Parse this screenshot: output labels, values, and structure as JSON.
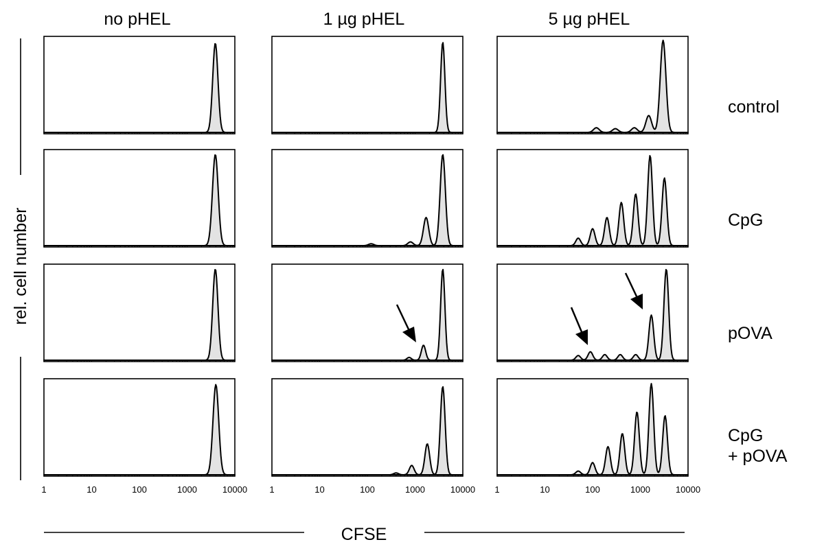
{
  "chart_data": {
    "type": "histogram-grid",
    "xlabel": "CFSE",
    "ylabel": "rel. cell number",
    "x_scale": "log",
    "xlim": [
      1,
      10000
    ],
    "x_ticks": [
      "1",
      "10",
      "100",
      "1000",
      "10000"
    ],
    "columns": [
      "no pHEL",
      "1 µg pHEL",
      "5 µg pHEL"
    ],
    "rows": [
      "control",
      "CpG",
      "pOVA",
      "CpG\n+ pOVA"
    ],
    "panels": [
      [
        {
          "peaks": [
            {
              "x": 3900,
              "h": 0.95
            }
          ],
          "width": 0.055,
          "base": 0
        },
        {
          "peaks": [
            {
              "x": 3900,
              "h": 0.97
            }
          ],
          "width": 0.06,
          "base": 0
        },
        {
          "peaks": [
            {
              "x": 3900,
              "h": 0.97
            }
          ],
          "width": 0.055,
          "base": 0
        },
        {
          "peaks": [
            {
              "x": 4000,
              "h": 0.96
            }
          ],
          "width": 0.06,
          "base": 0
        }
      ],
      [
        {
          "peaks": [
            {
              "x": 3800,
              "h": 0.96
            }
          ],
          "width": 0.045,
          "base": 0
        },
        {
          "peaks": [
            {
              "x": 3800,
              "h": 0.97
            },
            {
              "x": 1700,
              "h": 0.3
            },
            {
              "x": 800,
              "h": 0.04
            },
            {
              "x": 120,
              "h": 0.02
            }
          ],
          "width": 0.055,
          "base": 0
        },
        {
          "peaks": [
            {
              "x": 3800,
              "h": 0.97
            },
            {
              "x": 1500,
              "h": 0.16
            },
            {
              "x": 750,
              "h": 0.03
            }
          ],
          "width": 0.045,
          "base": 0
        },
        {
          "peaks": [
            {
              "x": 3800,
              "h": 0.94
            },
            {
              "x": 1800,
              "h": 0.33
            },
            {
              "x": 850,
              "h": 0.1
            },
            {
              "x": 400,
              "h": 0.02
            }
          ],
          "width": 0.05,
          "base": 0
        }
      ],
      [
        {
          "peaks": [
            {
              "x": 3000,
              "h": 0.98
            },
            {
              "x": 1500,
              "h": 0.18
            },
            {
              "x": 750,
              "h": 0.05
            },
            {
              "x": 300,
              "h": 0.04
            },
            {
              "x": 120,
              "h": 0.05
            }
          ],
          "width": 0.06,
          "base": 0
        },
        {
          "peaks": [
            {
              "x": 3200,
              "h": 0.72
            },
            {
              "x": 1600,
              "h": 0.96
            },
            {
              "x": 800,
              "h": 0.55
            },
            {
              "x": 400,
              "h": 0.46
            },
            {
              "x": 200,
              "h": 0.3
            },
            {
              "x": 100,
              "h": 0.18
            },
            {
              "x": 50,
              "h": 0.08
            }
          ],
          "width": 0.05,
          "base": 0
        },
        {
          "peaks": [
            {
              "x": 3500,
              "h": 0.97
            },
            {
              "x": 1700,
              "h": 0.48
            },
            {
              "x": 800,
              "h": 0.06
            },
            {
              "x": 380,
              "h": 0.06
            },
            {
              "x": 180,
              "h": 0.06
            },
            {
              "x": 90,
              "h": 0.09
            },
            {
              "x": 50,
              "h": 0.05
            }
          ],
          "width": 0.05,
          "base": 0
        },
        {
          "peaks": [
            {
              "x": 3300,
              "h": 0.63
            },
            {
              "x": 1700,
              "h": 0.97
            },
            {
              "x": 850,
              "h": 0.67
            },
            {
              "x": 420,
              "h": 0.44
            },
            {
              "x": 210,
              "h": 0.3
            },
            {
              "x": 100,
              "h": 0.13
            },
            {
              "x": 50,
              "h": 0.04
            }
          ],
          "width": 0.05,
          "base": 0
        }
      ]
    ]
  }
}
